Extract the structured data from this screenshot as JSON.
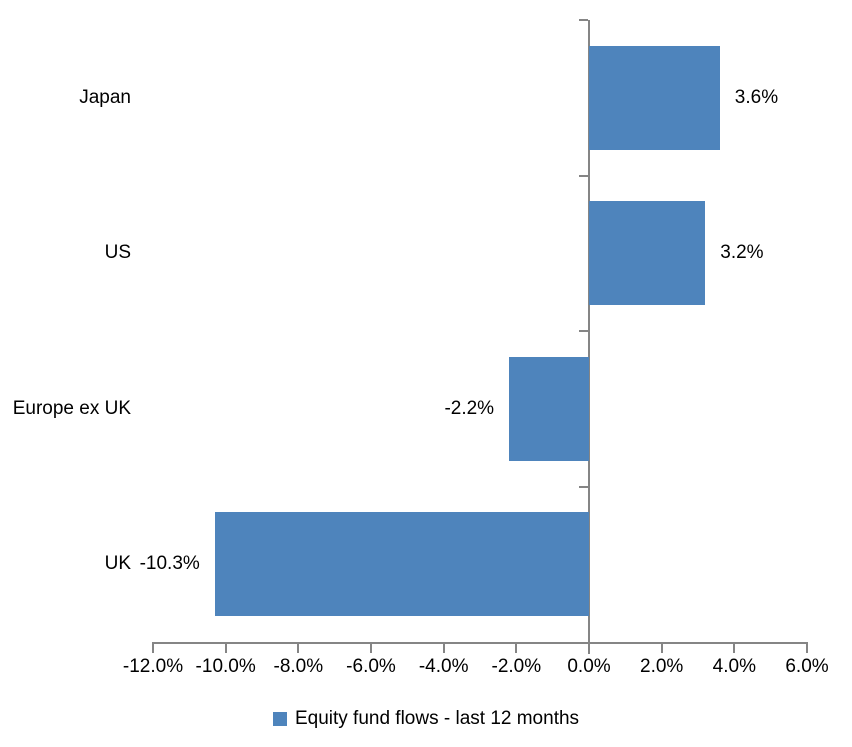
{
  "chart_data": {
    "type": "bar",
    "orientation": "horizontal",
    "title": "",
    "categories": [
      "Japan",
      "US",
      "Europe ex UK",
      "UK"
    ],
    "series": [
      {
        "name": "Equity fund flows - last 12 months",
        "values": [
          3.6,
          3.2,
          -2.2,
          -10.3
        ],
        "value_labels": [
          "3.6%",
          "3.2%",
          "-2.2%",
          "-10.3%"
        ]
      }
    ],
    "xlabel": "",
    "ylabel": "",
    "xlim": [
      -12,
      6
    ],
    "x_tick_step": 2,
    "x_tick_labels": [
      "-12.0%",
      "-10.0%",
      "-8.0%",
      "-6.0%",
      "-4.0%",
      "-2.0%",
      "0.0%",
      "2.0%",
      "4.0%",
      "6.0%"
    ],
    "grid": false,
    "legend_position": "bottom",
    "bar_color": "#4E84BC",
    "axis_color": "#858585",
    "text_color": "#000000"
  },
  "legend": {
    "label": "Equity fund flows - last 12 months",
    "swatch_color": "#4E84BC"
  }
}
